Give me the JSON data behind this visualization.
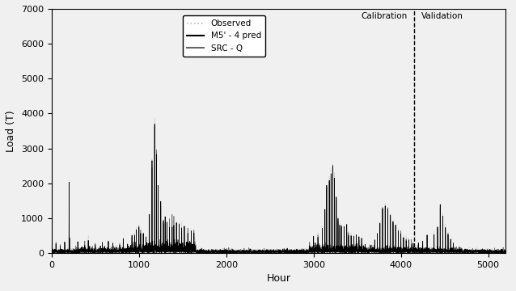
{
  "title": "",
  "xlabel": "Hour",
  "ylabel": "Load (T)",
  "xlim": [
    0,
    5200
  ],
  "ylim": [
    0,
    7000
  ],
  "yticks": [
    0,
    1000,
    2000,
    3000,
    4000,
    5000,
    6000,
    7000
  ],
  "xticks": [
    0,
    1000,
    2000,
    3000,
    4000,
    5000
  ],
  "calibration_label": "Calibration",
  "validation_label": "Validation",
  "divider_x": 4150,
  "legend_labels": [
    "Observed",
    "M5' - 4 pred",
    "SRC - Q"
  ],
  "observed_color": "#bbbbbb",
  "m5_color": "#000000",
  "src_color": "#666666",
  "background_color": "#f0f0f0",
  "figsize": [
    6.38,
    3.6
  ],
  "dpi": 100,
  "seed": 42
}
